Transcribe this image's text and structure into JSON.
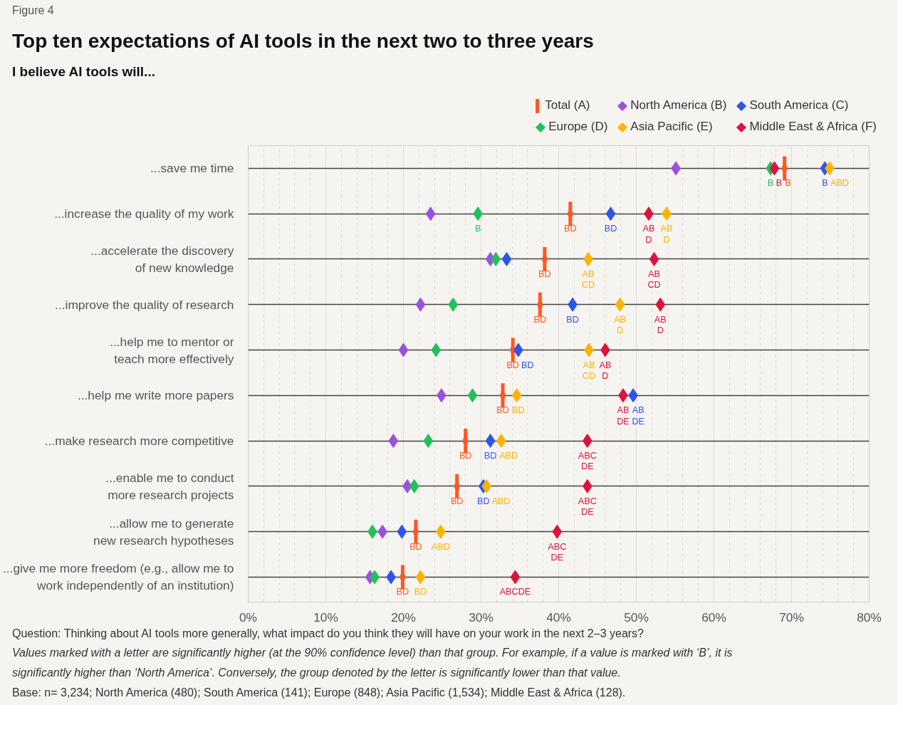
{
  "chart_data": {
    "type": "scatter",
    "orientation": "horizontal",
    "title": "Top ten expectations of AI tools in the next two to three years",
    "subtitle": "I believe AI tools will...",
    "categories": [
      "...save me time",
      "...increase the quality of my work",
      "...accelerate the discovery\nof new knowledge",
      "...improve the quality of research",
      "...help me to mentor or\nteach more effectively",
      "...help me write more papers",
      "...make research more competitive",
      "...enable me to conduct\nmore research projects",
      "...allow me to generate\nnew research hypotheses",
      "...give me more freedom (e.g., allow me to\nwork independently of an institution)"
    ],
    "series": [
      {
        "name": "Total (A)",
        "color": "#ff5722",
        "marker": "square",
        "values": [
          69.1,
          41.5,
          38.2,
          37.6,
          34.1,
          32.8,
          28.0,
          26.9,
          21.6,
          19.9
        ],
        "value_labels": [
          "B",
          "BD",
          "BD",
          "BD",
          "BD",
          "BD",
          "BD",
          "BD",
          "BD",
          "BD"
        ]
      },
      {
        "name": "North America (B)",
        "color": "#9b51e0",
        "values": [
          55.1,
          23.5,
          31.2,
          22.2,
          20.0,
          24.9,
          18.7,
          20.5,
          17.3,
          15.7
        ]
      },
      {
        "name": "South America (C)",
        "color": "#2f54eb",
        "values": [
          74.3,
          46.7,
          33.3,
          41.8,
          34.8,
          49.6,
          31.2,
          30.3,
          19.8,
          18.4
        ],
        "value_labels": [
          "B",
          "BD",
          null,
          "BD",
          "BD",
          "AB\nDE",
          "BD",
          "BD",
          null,
          null
        ]
      },
      {
        "name": "Europe (D)",
        "color": "#22c05a",
        "values": [
          67.3,
          29.6,
          31.9,
          26.4,
          24.2,
          28.9,
          23.2,
          21.4,
          16.0,
          16.3
        ],
        "value_labels": [
          "B",
          "B",
          null,
          null,
          null,
          null,
          null,
          null,
          null,
          null
        ]
      },
      {
        "name": "Asia Pacific (E)",
        "color": "#ffb300",
        "values": [
          74.9,
          53.9,
          43.8,
          47.9,
          43.9,
          34.6,
          32.6,
          30.7,
          24.8,
          22.2
        ],
        "value_labels": [
          "ABD",
          "AB\nD",
          "AB\nCD",
          "AB\nD",
          "AB\nCD",
          "BD",
          "ABD",
          "ABD",
          "ABD",
          "BD"
        ]
      },
      {
        "name": "Middle East & Africa (F)",
        "color": "#dc143c",
        "values": [
          67.8,
          51.6,
          52.3,
          53.1,
          46.0,
          48.3,
          43.7,
          43.7,
          39.8,
          34.4
        ],
        "value_labels": [
          "B",
          "AB\nD",
          "AB\nCD",
          "AB\nD",
          "AB\nD",
          "AB\nDE",
          "ABC\nDE",
          "ABC\nDE",
          "ABC\nDE",
          "ABCDE"
        ]
      }
    ],
    "marker": "diamond",
    "xlim": [
      0,
      80
    ],
    "xticks": [
      {
        "value": 0,
        "label": "0%"
      },
      {
        "value": 10,
        "label": "10%"
      },
      {
        "value": 20,
        "label": "20%"
      },
      {
        "value": 30,
        "label": "30%"
      },
      {
        "value": 40,
        "label": "40%"
      },
      {
        "value": 50,
        "label": "50%"
      },
      {
        "value": 60,
        "label": "60%"
      },
      {
        "value": 70,
        "label": "70%"
      },
      {
        "value": 80,
        "label": "80%"
      }
    ],
    "grid": true,
    "legend": "top right",
    "annotations": [
      "Figure 4",
      "Question: Thinking about AI tools more generally, what impact do you think they will have on your work in the next 2–3 years?",
      "Values marked with a letter are significantly higher (at the 90% confidence level) than that group. For example, if a value is marked with ‘B’, it is",
      "significantly higher than ‘North America’. Conversely, the group denoted by the letter is significantly lower than that value.",
      "Base: n= 3,234; North America (480); South America (141); Europe (848); Asia Pacific (1,534); Middle East & Africa (128)."
    ]
  }
}
